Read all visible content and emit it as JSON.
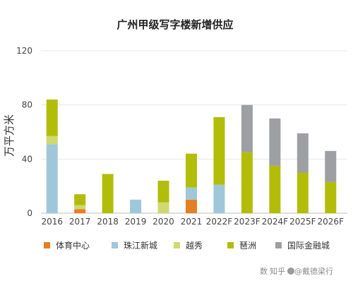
{
  "chart_data": {
    "type": "bar",
    "stacked": true,
    "title": "广州甲级写字楼新增供应",
    "ylabel": "万平方米",
    "xlabel": "",
    "ylim": [
      0,
      120
    ],
    "yticks": [
      0,
      40,
      80,
      120
    ],
    "categories": [
      "2016",
      "2017",
      "2018",
      "2019",
      "2020",
      "2021",
      "2022F",
      "2023F",
      "2024F",
      "2025F",
      "2026F"
    ],
    "grid": true,
    "legend_position": "bottom",
    "series": [
      {
        "name": "体育中心",
        "color": "#e67e22",
        "values": [
          0,
          3,
          0,
          0,
          0,
          10,
          0,
          0,
          0,
          0,
          0
        ]
      },
      {
        "name": "珠江新城",
        "color": "#9fc7d9",
        "values": [
          51,
          0,
          0,
          10,
          0,
          9,
          21,
          0,
          0,
          0,
          0
        ]
      },
      {
        "name": "越秀",
        "color": "#cfd96f",
        "values": [
          6,
          3,
          0,
          0,
          8,
          0,
          0,
          0,
          0,
          0,
          0
        ]
      },
      {
        "name": "琶洲",
        "color": "#b2bd09",
        "values": [
          27,
          8,
          29,
          0,
          16,
          25,
          50,
          45,
          35,
          30,
          23
        ]
      },
      {
        "name": "国际金融城",
        "color": "#9d9fa3",
        "values": [
          0,
          0,
          0,
          0,
          0,
          0,
          0,
          35,
          35,
          29,
          23
        ]
      }
    ]
  },
  "watermark": {
    "text_cn": "知乎",
    "text_user": "@戴德梁行",
    "text_prefix": "数"
  }
}
